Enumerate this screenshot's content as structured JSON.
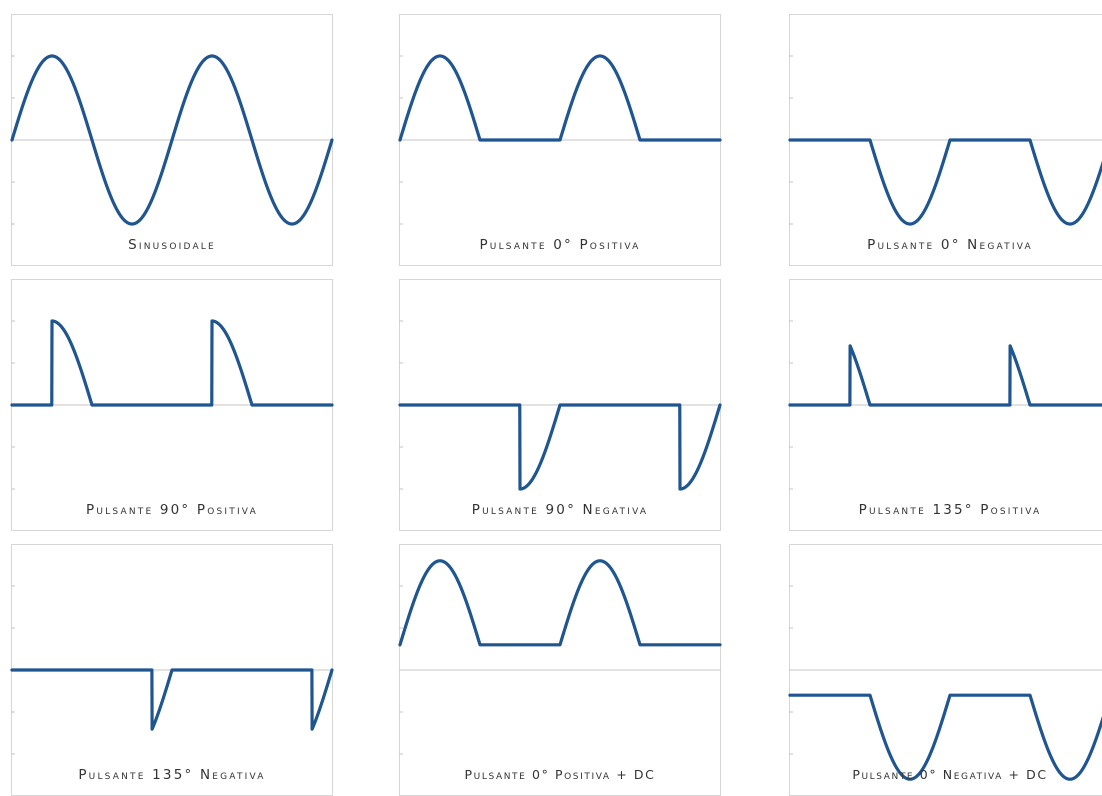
{
  "colors": {
    "wave": "#1f5590",
    "grid": "#c4c4c4",
    "frame": "#d6d6d6",
    "text": "#333333"
  },
  "chart_data": [
    {
      "type": "line",
      "title": "Sinusoidale",
      "waveform": "sine",
      "cycles": 2,
      "ylim": [
        -1.5,
        1.5
      ],
      "dc_offset": 0
    },
    {
      "type": "line",
      "title": "Pulsante 0° Positiva",
      "waveform": "half-wave",
      "polarity": "positive",
      "cut_angle_deg": 0,
      "cycles": 2,
      "ylim": [
        -1.5,
        1.5
      ],
      "dc_offset": 0
    },
    {
      "type": "line",
      "title": "Pulsante 0° Negativa",
      "waveform": "half-wave",
      "polarity": "negative",
      "cut_angle_deg": 0,
      "cycles": 2,
      "ylim": [
        -1.5,
        1.5
      ],
      "dc_offset": 0
    },
    {
      "type": "line",
      "title": "Pulsante 90° Positiva",
      "waveform": "phase-cut",
      "polarity": "positive",
      "cut_angle_deg": 90,
      "cycles": 2,
      "ylim": [
        -1.5,
        1.5
      ],
      "dc_offset": 0
    },
    {
      "type": "line",
      "title": "Pulsante 90° Negativa",
      "waveform": "phase-cut",
      "polarity": "negative",
      "cut_angle_deg": 90,
      "cycles": 2,
      "ylim": [
        -1.5,
        1.5
      ],
      "dc_offset": 0
    },
    {
      "type": "line",
      "title": "Pulsante 135° Positiva",
      "waveform": "phase-cut",
      "polarity": "positive",
      "cut_angle_deg": 135,
      "cycles": 2,
      "ylim": [
        -1.5,
        1.5
      ],
      "dc_offset": 0
    },
    {
      "type": "line",
      "title": "Pulsante 135° Negativa",
      "waveform": "phase-cut",
      "polarity": "negative",
      "cut_angle_deg": 135,
      "cycles": 2,
      "ylim": [
        -1.5,
        1.5
      ],
      "dc_offset": 0
    },
    {
      "type": "line",
      "title": "Pulsante 0° Positiva + DC",
      "waveform": "half-wave",
      "polarity": "positive",
      "cut_angle_deg": 0,
      "cycles": 2,
      "ylim": [
        -1.5,
        1.5
      ],
      "dc_offset": 0.3
    },
    {
      "type": "line",
      "title": "Pulsante 0° Negativa + DC",
      "waveform": "half-wave",
      "polarity": "negative",
      "cut_angle_deg": 0,
      "cycles": 2,
      "ylim": [
        -1.5,
        1.5
      ],
      "dc_offset": 0.3
    }
  ]
}
